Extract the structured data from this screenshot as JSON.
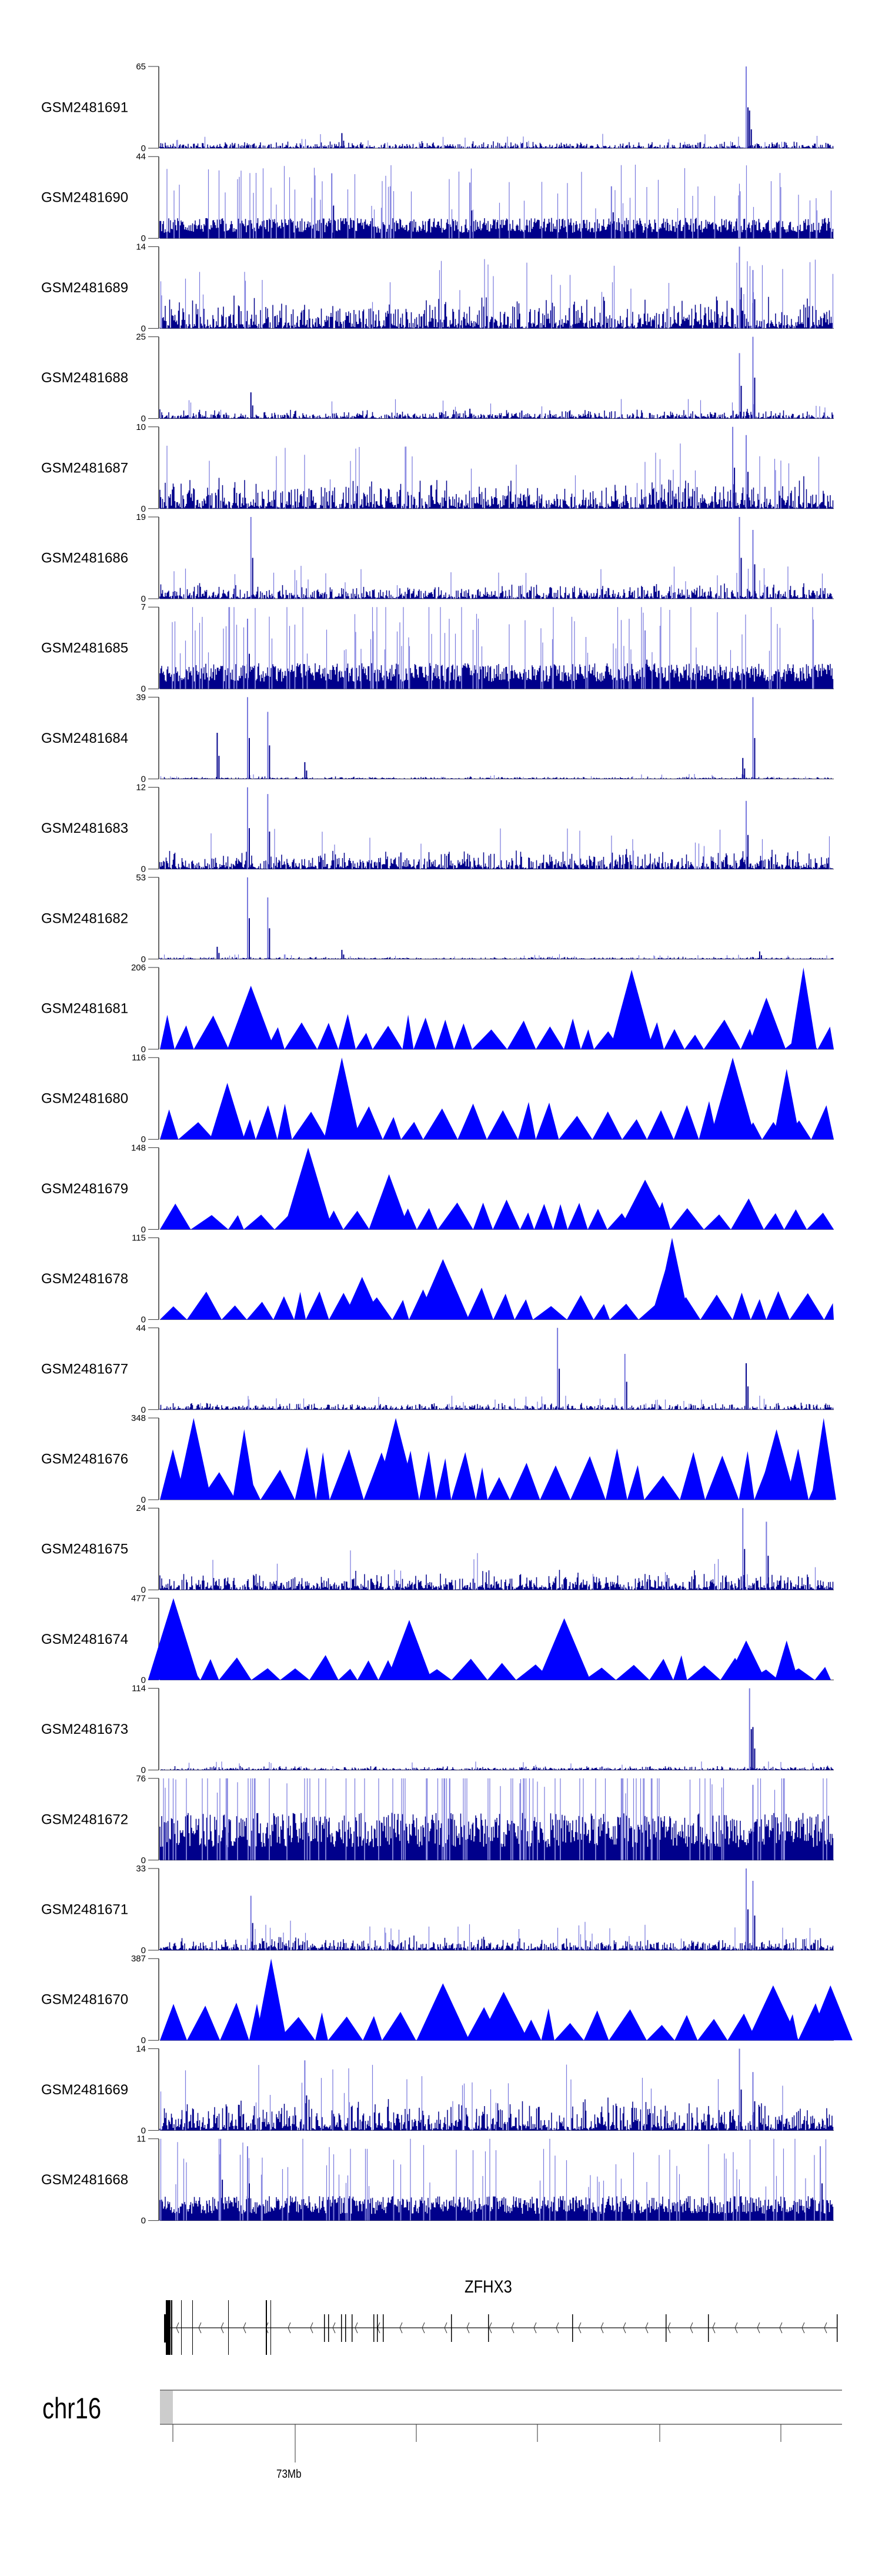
{
  "chart_data": {
    "type": "area",
    "title": "",
    "region": {
      "chromosome": "chr16",
      "tick_label": "73Mb"
    },
    "gene": {
      "name": "ZFHX3",
      "strand": "-"
    },
    "tracks": [
      {
        "name": "GSM2481691",
        "ymax": 65,
        "style": "bars",
        "base": 3,
        "peaks": [
          [
            0.27,
            12
          ],
          [
            0.87,
            65
          ],
          [
            0.875,
            30
          ]
        ]
      },
      {
        "name": "GSM2481690",
        "ymax": 44,
        "style": "dense",
        "base": 10,
        "peaks": [
          [
            0.255,
            35
          ],
          [
            0.46,
            30
          ],
          [
            0.67,
            28
          ]
        ]
      },
      {
        "name": "GSM2481689",
        "ymax": 14,
        "style": "bars",
        "base": 3,
        "peaks": [
          [
            0.86,
            14
          ],
          [
            0.88,
            10
          ]
        ]
      },
      {
        "name": "GSM2481688",
        "ymax": 25,
        "style": "bars",
        "base": 1.5,
        "peaks": [
          [
            0.135,
            8
          ],
          [
            0.46,
            3
          ],
          [
            0.86,
            20
          ],
          [
            0.88,
            25
          ]
        ]
      },
      {
        "name": "GSM2481687",
        "ymax": 10,
        "style": "bars",
        "base": 2,
        "peaks": [
          [
            0.85,
            10
          ],
          [
            0.87,
            9
          ]
        ]
      },
      {
        "name": "GSM2481686",
        "ymax": 19,
        "style": "bars",
        "base": 2,
        "peaks": [
          [
            0.135,
            19
          ],
          [
            0.86,
            19
          ],
          [
            0.88,
            16
          ]
        ]
      },
      {
        "name": "GSM2481685",
        "ymax": 7,
        "style": "dense",
        "base": 2,
        "peaks": [
          [
            0.13,
            6
          ],
          [
            0.72,
            5
          ]
        ]
      },
      {
        "name": "GSM2481684",
        "ymax": 39,
        "style": "bars",
        "base": 0.6,
        "peaks": [
          [
            0.085,
            22
          ],
          [
            0.13,
            39
          ],
          [
            0.16,
            32
          ],
          [
            0.215,
            8
          ],
          [
            0.88,
            39
          ],
          [
            0.865,
            10
          ]
        ]
      },
      {
        "name": "GSM2481683",
        "ymax": 12,
        "style": "bars",
        "base": 1.5,
        "peaks": [
          [
            0.13,
            12
          ],
          [
            0.16,
            11
          ],
          [
            0.87,
            10
          ]
        ]
      },
      {
        "name": "GSM2481682",
        "ymax": 53,
        "style": "bars",
        "base": 0.8,
        "peaks": [
          [
            0.085,
            8
          ],
          [
            0.13,
            53
          ],
          [
            0.16,
            40
          ],
          [
            0.27,
            6
          ],
          [
            0.89,
            5
          ]
        ]
      },
      {
        "name": "GSM2481681",
        "ymax": 206,
        "style": "triangles",
        "base": 60,
        "peaks": [
          [
            0.135,
            160
          ],
          [
            0.7,
            200
          ],
          [
            0.9,
            130
          ],
          [
            0.955,
            206
          ]
        ]
      },
      {
        "name": "GSM2481680",
        "ymax": 116,
        "style": "triangles",
        "base": 40,
        "peaks": [
          [
            0.1,
            80
          ],
          [
            0.27,
            116
          ],
          [
            0.85,
            116
          ],
          [
            0.93,
            100
          ]
        ]
      },
      {
        "name": "GSM2481679",
        "ymax": 148,
        "style": "triangles",
        "base": 40,
        "peaks": [
          [
            0.22,
            148
          ],
          [
            0.34,
            100
          ],
          [
            0.72,
            90
          ]
        ]
      },
      {
        "name": "GSM2481678",
        "ymax": 115,
        "style": "triangles",
        "base": 30,
        "peaks": [
          [
            0.3,
            60
          ],
          [
            0.42,
            85
          ],
          [
            0.75,
            70
          ],
          [
            0.76,
            115
          ]
        ]
      },
      {
        "name": "GSM2481677",
        "ymax": 44,
        "style": "bars",
        "base": 2,
        "peaks": [
          [
            0.59,
            44
          ],
          [
            0.69,
            30
          ],
          [
            0.87,
            25
          ]
        ]
      },
      {
        "name": "GSM2481676",
        "ymax": 348,
        "style": "triangles",
        "base": 150,
        "peaks": [
          [
            0.05,
            348
          ],
          [
            0.125,
            300
          ],
          [
            0.35,
            348
          ],
          [
            0.915,
            300
          ],
          [
            0.985,
            348
          ]
        ]
      },
      {
        "name": "GSM2481675",
        "ymax": 24,
        "style": "bars",
        "base": 3,
        "peaks": [
          [
            0.865,
            24
          ],
          [
            0.9,
            20
          ]
        ]
      },
      {
        "name": "GSM2481674",
        "ymax": 477,
        "style": "triangles",
        "base": 100,
        "peaks": [
          [
            0.02,
            477
          ],
          [
            0.37,
            350
          ],
          [
            0.6,
            360
          ],
          [
            0.87,
            230
          ],
          [
            0.93,
            230
          ]
        ]
      },
      {
        "name": "GSM2481673",
        "ymax": 114,
        "style": "bars",
        "base": 3,
        "peaks": [
          [
            0.875,
            114
          ],
          [
            0.88,
            60
          ]
        ]
      },
      {
        "name": "GSM2481672",
        "ymax": 76,
        "style": "dense",
        "base": 40,
        "peaks": [
          [
            0.1,
            76
          ],
          [
            0.43,
            76
          ],
          [
            0.88,
            70
          ]
        ]
      },
      {
        "name": "GSM2481671",
        "ymax": 33,
        "style": "bars",
        "base": 3,
        "peaks": [
          [
            0.135,
            22
          ],
          [
            0.87,
            33
          ],
          [
            0.88,
            28
          ]
        ]
      },
      {
        "name": "GSM2481670",
        "ymax": 387,
        "style": "triangles",
        "base": 120,
        "peaks": [
          [
            0.165,
            387
          ],
          [
            0.42,
            270
          ],
          [
            0.51,
            230
          ],
          [
            0.91,
            260
          ],
          [
            0.995,
            260
          ]
        ]
      },
      {
        "name": "GSM2481669",
        "ymax": 14,
        "style": "bars",
        "base": 3,
        "peaks": [
          [
            0.215,
            12
          ],
          [
            0.86,
            14
          ],
          [
            0.88,
            10
          ]
        ]
      },
      {
        "name": "GSM2481668",
        "ymax": 11,
        "style": "dense",
        "base": 3,
        "peaks": [
          [
            0.09,
            11
          ],
          [
            0.13,
            10
          ],
          [
            0.98,
            10
          ]
        ]
      }
    ]
  },
  "colors": {
    "dense": "#00008B",
    "light": "#7777DD",
    "fill": "#0000FF",
    "axis": "#666666"
  }
}
